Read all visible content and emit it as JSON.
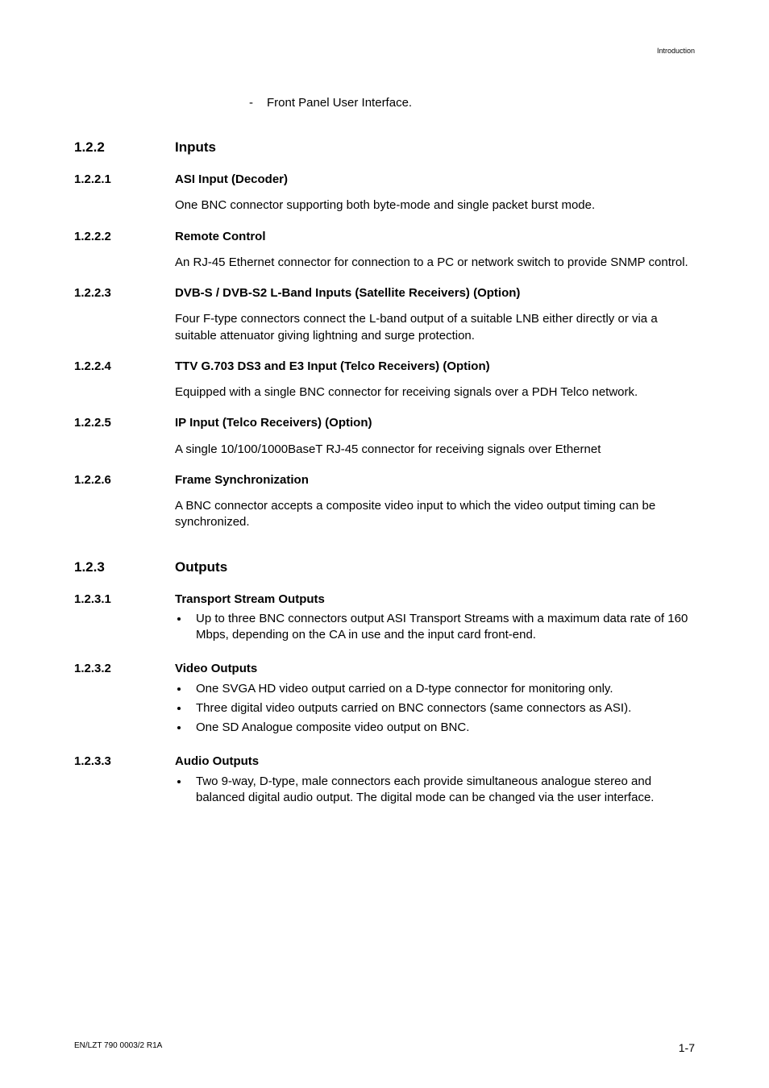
{
  "page": {
    "header_right": "Introduction",
    "footer_left": "EN/LZT 790 0003/2 R1A",
    "footer_right": "1-7"
  },
  "pre_dash": {
    "text": "Front Panel User Interface."
  },
  "s122": {
    "num": "1.2.2",
    "title": "Inputs"
  },
  "s1221": {
    "num": "1.2.2.1",
    "title": "ASI Input (Decoder)",
    "p1": "One BNC connector supporting both byte-mode and single packet burst mode."
  },
  "s1222": {
    "num": "1.2.2.2",
    "title": "Remote Control",
    "p1": "An RJ-45 Ethernet connector for connection to a PC or network switch to provide SNMP control."
  },
  "s1223": {
    "num": "1.2.2.3",
    "title": "DVB-S / DVB-S2 L-Band Inputs (Satellite Receivers) (Option)",
    "p1": "Four F-type connectors connect the L-band output of a suitable LNB either directly or via a suitable attenuator giving lightning and surge protection."
  },
  "s1224": {
    "num": "1.2.2.4",
    "title": "TTV G.703 DS3 and E3 Input (Telco Receivers) (Option)",
    "p1": "Equipped with a single BNC connector for receiving signals over a PDH Telco network."
  },
  "s1225": {
    "num": "1.2.2.5",
    "title": "IP Input (Telco Receivers) (Option)",
    "p1": "A single 10/100/1000BaseT RJ-45 connector for receiving signals over Ethernet"
  },
  "s1226": {
    "num": "1.2.2.6",
    "title": "Frame Synchronization",
    "p1": "A BNC connector accepts a composite video input to which the video output timing can be synchronized."
  },
  "s123": {
    "num": "1.2.3",
    "title": "Outputs"
  },
  "s1231": {
    "num": "1.2.3.1",
    "title": "Transport Stream Outputs",
    "b1": "Up to three BNC connectors output ASI Transport Streams with a maximum data rate of 160 Mbps, depending on the CA in use and the input card front-end."
  },
  "s1232": {
    "num": "1.2.3.2",
    "title": "Video Outputs",
    "b1": "One SVGA HD video output carried on a D-type connector for monitoring only.",
    "b2": "Three digital video outputs carried on BNC connectors (same connectors as ASI).",
    "b3": "One SD Analogue composite video output on BNC."
  },
  "s1233": {
    "num": "1.2.3.3",
    "title": "Audio Outputs",
    "b1": "Two 9-way, D-type, male connectors each provide simultaneous analogue stereo and balanced digital audio output. The digital mode can be changed via the user interface."
  }
}
